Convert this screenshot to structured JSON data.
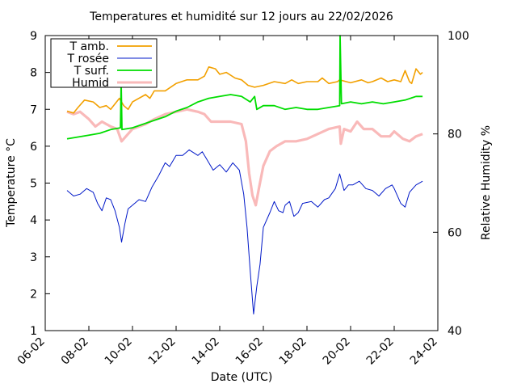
{
  "chart_data": {
    "type": "line",
    "title": "Temperatures et humidité sur 12 jours au 22/02/2026",
    "xlabel": "Date (UTC)",
    "ylabel": "Temperature °C",
    "y2label": "Relative Humidity %",
    "x_ticks": [
      "06-02",
      "08-02",
      "10-02",
      "12-02",
      "14-02",
      "16-02",
      "18-02",
      "20-02",
      "22-02",
      "24-02"
    ],
    "y_ticks": [
      "1",
      "2",
      "3",
      "4",
      "5",
      "6",
      "7",
      "8",
      "9"
    ],
    "y2_ticks": [
      "40",
      "60",
      "80",
      "100"
    ],
    "xlim_days": [
      6,
      24
    ],
    "ylim": [
      1,
      9
    ],
    "y2lim": [
      40,
      100
    ],
    "grid": false,
    "legend_position": "top-left",
    "series": [
      {
        "name": "T amb.",
        "color": "#f2a000",
        "axis": "temperature",
        "points": [
          [
            7.0,
            6.95
          ],
          [
            7.3,
            6.9
          ],
          [
            7.5,
            7.05
          ],
          [
            7.8,
            7.25
          ],
          [
            8.2,
            7.2
          ],
          [
            8.5,
            7.05
          ],
          [
            8.8,
            7.1
          ],
          [
            9.0,
            7.0
          ],
          [
            9.4,
            7.3
          ],
          [
            9.6,
            7.1
          ],
          [
            9.8,
            7.0
          ],
          [
            10.0,
            7.2
          ],
          [
            10.6,
            7.4
          ],
          [
            10.8,
            7.3
          ],
          [
            11.0,
            7.5
          ],
          [
            11.5,
            7.5
          ],
          [
            12.0,
            7.7
          ],
          [
            12.5,
            7.8
          ],
          [
            13.0,
            7.8
          ],
          [
            13.3,
            7.9
          ],
          [
            13.5,
            8.15
          ],
          [
            13.8,
            8.1
          ],
          [
            14.0,
            7.95
          ],
          [
            14.3,
            8.0
          ],
          [
            14.7,
            7.85
          ],
          [
            15.0,
            7.8
          ],
          [
            15.3,
            7.65
          ],
          [
            15.6,
            7.6
          ],
          [
            16.0,
            7.65
          ],
          [
            16.5,
            7.75
          ],
          [
            17.0,
            7.7
          ],
          [
            17.3,
            7.8
          ],
          [
            17.6,
            7.7
          ],
          [
            18.0,
            7.75
          ],
          [
            18.5,
            7.75
          ],
          [
            18.7,
            7.85
          ],
          [
            19.0,
            7.7
          ],
          [
            19.4,
            7.75
          ],
          [
            19.5,
            7.8
          ],
          [
            19.8,
            7.75
          ],
          [
            20.0,
            7.72
          ],
          [
            20.5,
            7.8
          ],
          [
            20.8,
            7.72
          ],
          [
            21.0,
            7.75
          ],
          [
            21.4,
            7.85
          ],
          [
            21.7,
            7.75
          ],
          [
            22.0,
            7.8
          ],
          [
            22.3,
            7.75
          ],
          [
            22.5,
            8.05
          ],
          [
            22.7,
            7.75
          ],
          [
            22.8,
            7.7
          ],
          [
            23.0,
            8.1
          ],
          [
            23.2,
            7.95
          ],
          [
            23.3,
            8.0
          ]
        ]
      },
      {
        "name": "T rosée",
        "color": "#0018c8",
        "axis": "temperature",
        "points": [
          [
            7.0,
            4.8
          ],
          [
            7.3,
            4.65
          ],
          [
            7.6,
            4.7
          ],
          [
            7.9,
            4.85
          ],
          [
            8.2,
            4.75
          ],
          [
            8.4,
            4.45
          ],
          [
            8.6,
            4.25
          ],
          [
            8.8,
            4.6
          ],
          [
            9.0,
            4.55
          ],
          [
            9.2,
            4.25
          ],
          [
            9.4,
            3.8
          ],
          [
            9.5,
            3.4
          ],
          [
            9.65,
            3.9
          ],
          [
            9.8,
            4.3
          ],
          [
            10.0,
            4.4
          ],
          [
            10.3,
            4.55
          ],
          [
            10.6,
            4.5
          ],
          [
            10.9,
            4.9
          ],
          [
            11.2,
            5.2
          ],
          [
            11.5,
            5.55
          ],
          [
            11.7,
            5.45
          ],
          [
            12.0,
            5.75
          ],
          [
            12.3,
            5.75
          ],
          [
            12.6,
            5.9
          ],
          [
            13.0,
            5.75
          ],
          [
            13.2,
            5.85
          ],
          [
            13.4,
            5.65
          ],
          [
            13.7,
            5.35
          ],
          [
            14.0,
            5.5
          ],
          [
            14.3,
            5.3
          ],
          [
            14.6,
            5.55
          ],
          [
            14.9,
            5.35
          ],
          [
            15.1,
            4.7
          ],
          [
            15.25,
            3.8
          ],
          [
            15.4,
            2.6
          ],
          [
            15.55,
            1.45
          ],
          [
            15.7,
            2.2
          ],
          [
            15.85,
            2.8
          ],
          [
            16.0,
            3.8
          ],
          [
            16.3,
            4.2
          ],
          [
            16.5,
            4.5
          ],
          [
            16.7,
            4.25
          ],
          [
            16.9,
            4.2
          ],
          [
            17.0,
            4.4
          ],
          [
            17.2,
            4.5
          ],
          [
            17.4,
            4.1
          ],
          [
            17.6,
            4.2
          ],
          [
            17.8,
            4.45
          ],
          [
            18.2,
            4.5
          ],
          [
            18.5,
            4.35
          ],
          [
            18.8,
            4.55
          ],
          [
            19.0,
            4.6
          ],
          [
            19.3,
            4.85
          ],
          [
            19.5,
            5.25
          ],
          [
            19.7,
            4.8
          ],
          [
            19.9,
            4.95
          ],
          [
            20.1,
            4.95
          ],
          [
            20.4,
            5.05
          ],
          [
            20.7,
            4.85
          ],
          [
            21.0,
            4.8
          ],
          [
            21.3,
            4.65
          ],
          [
            21.6,
            4.85
          ],
          [
            21.9,
            4.95
          ],
          [
            22.0,
            4.85
          ],
          [
            22.3,
            4.45
          ],
          [
            22.5,
            4.35
          ],
          [
            22.7,
            4.75
          ],
          [
            23.0,
            4.95
          ],
          [
            23.3,
            5.05
          ]
        ]
      },
      {
        "name": "T surf.",
        "color": "#00dd00",
        "axis": "temperature",
        "points": [
          [
            7.0,
            6.2
          ],
          [
            7.5,
            6.25
          ],
          [
            8.0,
            6.3
          ],
          [
            8.5,
            6.35
          ],
          [
            9.0,
            6.45
          ],
          [
            9.45,
            6.5
          ],
          [
            9.48,
            7.75
          ],
          [
            9.52,
            6.45
          ],
          [
            10.0,
            6.5
          ],
          [
            10.5,
            6.6
          ],
          [
            11.0,
            6.7
          ],
          [
            11.5,
            6.8
          ],
          [
            12.0,
            6.95
          ],
          [
            12.5,
            7.05
          ],
          [
            13.0,
            7.2
          ],
          [
            13.5,
            7.3
          ],
          [
            14.0,
            7.35
          ],
          [
            14.5,
            7.4
          ],
          [
            15.0,
            7.35
          ],
          [
            15.4,
            7.2
          ],
          [
            15.6,
            7.35
          ],
          [
            15.7,
            7.0
          ],
          [
            16.0,
            7.1
          ],
          [
            16.5,
            7.1
          ],
          [
            17.0,
            7.0
          ],
          [
            17.5,
            7.05
          ],
          [
            18.0,
            7.0
          ],
          [
            18.5,
            7.0
          ],
          [
            19.0,
            7.05
          ],
          [
            19.5,
            7.1
          ],
          [
            19.52,
            9.0
          ],
          [
            19.58,
            7.15
          ],
          [
            20.0,
            7.2
          ],
          [
            20.5,
            7.15
          ],
          [
            21.0,
            7.2
          ],
          [
            21.5,
            7.15
          ],
          [
            22.0,
            7.2
          ],
          [
            22.5,
            7.25
          ],
          [
            23.0,
            7.35
          ],
          [
            23.3,
            7.35
          ]
        ]
      },
      {
        "name": "Humid",
        "color": "#f9b9b9",
        "axis": "humidity",
        "points": [
          [
            7.0,
            84.5
          ],
          [
            7.3,
            84.0
          ],
          [
            7.6,
            84.5
          ],
          [
            8.0,
            83.0
          ],
          [
            8.3,
            81.5
          ],
          [
            8.6,
            82.5
          ],
          [
            9.0,
            81.5
          ],
          [
            9.3,
            81.0
          ],
          [
            9.5,
            78.5
          ],
          [
            9.7,
            79.5
          ],
          [
            10.0,
            81.0
          ],
          [
            10.3,
            81.5
          ],
          [
            10.6,
            82.0
          ],
          [
            11.0,
            83.0
          ],
          [
            11.5,
            84.0
          ],
          [
            12.0,
            84.5
          ],
          [
            12.5,
            85.0
          ],
          [
            13.0,
            84.5
          ],
          [
            13.3,
            84.0
          ],
          [
            13.6,
            82.5
          ],
          [
            14.0,
            82.5
          ],
          [
            14.5,
            82.5
          ],
          [
            15.0,
            82.0
          ],
          [
            15.2,
            78.5
          ],
          [
            15.35,
            72.0
          ],
          [
            15.5,
            67.5
          ],
          [
            15.65,
            65.5
          ],
          [
            15.8,
            69.0
          ],
          [
            16.0,
            73.5
          ],
          [
            16.3,
            76.5
          ],
          [
            16.6,
            77.5
          ],
          [
            17.0,
            78.5
          ],
          [
            17.5,
            78.5
          ],
          [
            18.0,
            79.0
          ],
          [
            18.5,
            80.0
          ],
          [
            19.0,
            81.0
          ],
          [
            19.5,
            81.5
          ],
          [
            19.55,
            78.0
          ],
          [
            19.7,
            81.0
          ],
          [
            20.0,
            80.5
          ],
          [
            20.3,
            82.5
          ],
          [
            20.6,
            81.0
          ],
          [
            21.0,
            81.0
          ],
          [
            21.4,
            79.5
          ],
          [
            21.8,
            79.5
          ],
          [
            22.0,
            80.5
          ],
          [
            22.4,
            79.0
          ],
          [
            22.7,
            78.5
          ],
          [
            23.0,
            79.5
          ],
          [
            23.3,
            80.0
          ]
        ]
      }
    ]
  }
}
